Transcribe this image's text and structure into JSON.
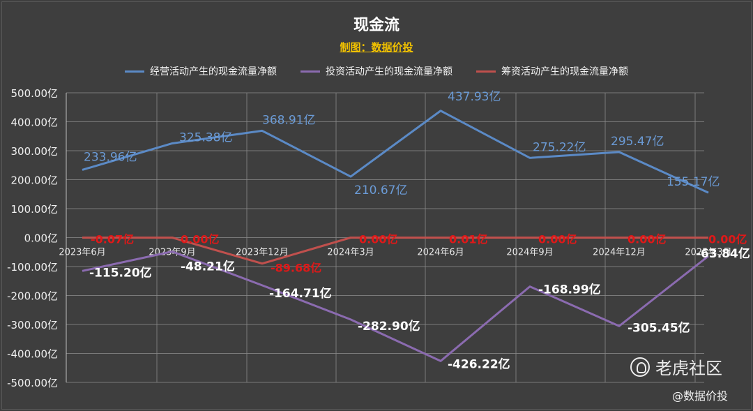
{
  "chart_data": {
    "type": "line",
    "title": "现金流",
    "subtitle": "制图：数据价投",
    "legend_position": "top",
    "grid": true,
    "ylim": [
      -500,
      500
    ],
    "yticks": [
      "500.00亿",
      "400.00亿",
      "300.00亿",
      "200.00亿",
      "100.00亿",
      "0.00亿",
      "-100.00亿",
      "-200.00亿",
      "-300.00亿",
      "-400.00亿",
      "-500.00亿"
    ],
    "ytick_values": [
      500,
      400,
      300,
      200,
      100,
      0,
      -100,
      -200,
      -300,
      -400,
      -500
    ],
    "categories": [
      "2023年6月",
      "2023年9月",
      "2023年12月",
      "2024年3月",
      "2024年6月",
      "2024年9月",
      "2024年12月",
      "2025年3月"
    ],
    "series": [
      {
        "name": "经营活动产生的现金流量净额",
        "color": "#5b8ac6",
        "values": [
          233.96,
          325.38,
          368.91,
          210.67,
          437.93,
          275.22,
          295.47,
          155.17
        ],
        "labels": [
          "233.96亿",
          "325.38亿",
          "368.91亿",
          "210.67亿",
          "437.93亿",
          "275.22亿",
          "295.47亿",
          "155.17亿"
        ]
      },
      {
        "name": "投资活动产生的现金流量净额",
        "color": "#8b6bb0",
        "values": [
          -115.2,
          -48.21,
          -164.71,
          -282.9,
          -426.22,
          -168.99,
          -305.45,
          -63.84
        ],
        "labels": [
          "-115.20亿",
          "-48.21亿",
          "-164.71亿",
          "-282.90亿",
          "-426.22亿",
          "-168.99亿",
          "-305.45亿",
          "-63.84亿"
        ]
      },
      {
        "name": "筹资活动产生的现金流量净额",
        "color": "#c0504d",
        "values": [
          -0.07,
          0.0,
          -89.68,
          0.0,
          0.01,
          0.0,
          0.0,
          0.0
        ],
        "labels": [
          "-0.07亿",
          "0.00亿",
          "-89.68亿",
          "0.00亿",
          "0.01亿",
          "0.00亿",
          "0.00亿",
          "0.00亿"
        ]
      }
    ]
  },
  "watermark": {
    "brand": "老虎社区",
    "author": "@数据价投"
  }
}
